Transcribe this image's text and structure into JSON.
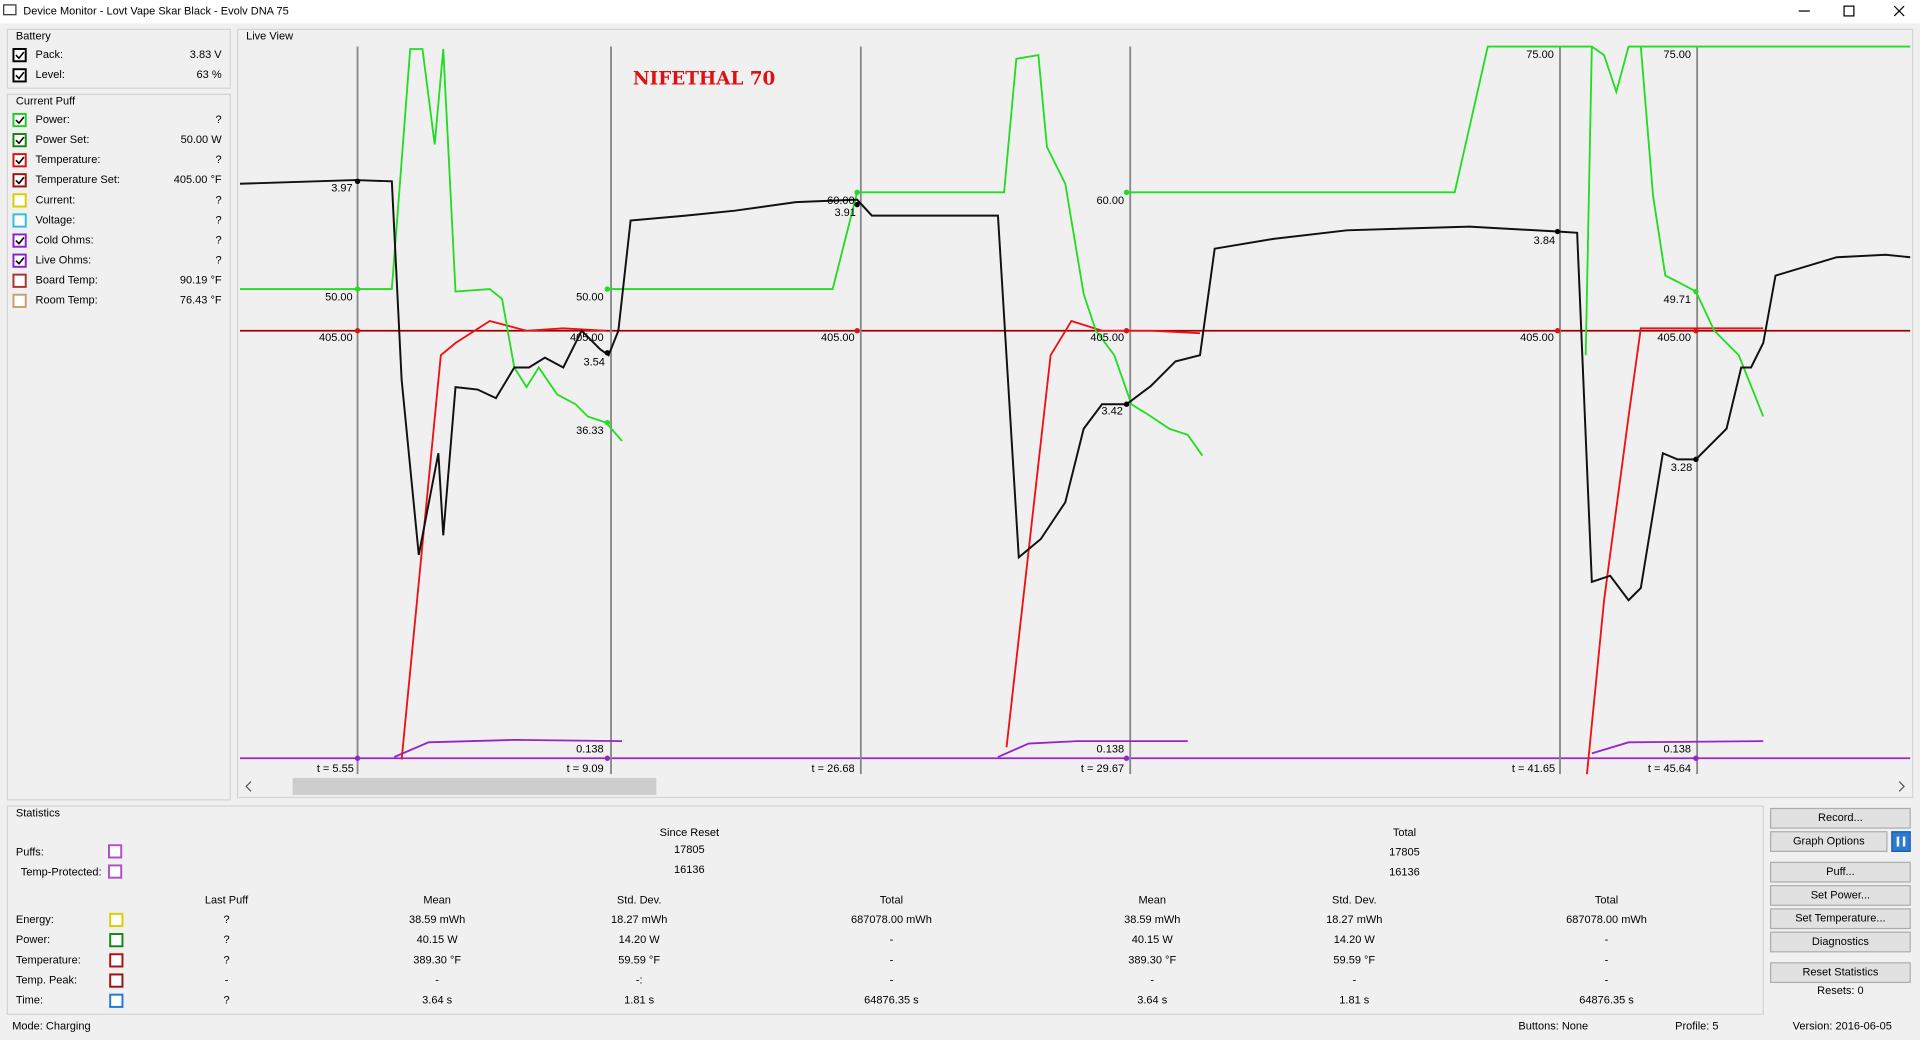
{
  "window": {
    "title": "Device Monitor - Lovt Vape Skar Black - Evolv DNA 75"
  },
  "battery": {
    "title": "Battery",
    "rows": [
      {
        "label": "Pack:",
        "value": "3.83 V"
      },
      {
        "label": "Level:",
        "value": "63 %"
      }
    ]
  },
  "current_puff": {
    "title": "Current Puff",
    "rows": [
      {
        "label": "Power:",
        "value": "?"
      },
      {
        "label": "Power Set:",
        "value": "50.00 W"
      },
      {
        "label": "Temperature:",
        "value": "?"
      },
      {
        "label": "Temperature Set:",
        "value": "405.00 °F"
      },
      {
        "label": "Current:",
        "value": "?"
      },
      {
        "label": "Voltage:",
        "value": "?"
      },
      {
        "label": "Cold Ohms:",
        "value": "?"
      },
      {
        "label": "Live Ohms:",
        "value": "?"
      },
      {
        "label": "Board Temp:",
        "value": "90.19 °F"
      },
      {
        "label": "Room Temp:",
        "value": "76.43 °F"
      }
    ]
  },
  "live_view": {
    "title": "Live View",
    "watermark": "NIFETHAL 70",
    "labels": [
      "3.97",
      "50.00",
      "405.00",
      "50.00",
      "405.00",
      "3.54",
      "36.33",
      "0.138",
      "60.00",
      "3.91",
      "405.00",
      "60.00",
      "405.00",
      "3.42",
      "0.138",
      "75.00",
      "3.84",
      "405.00",
      "75.00",
      "49.71",
      "405.00",
      "3.28",
      "0.138",
      "t = 5.55",
      "t = 9.09",
      "t = 26.68",
      "t = 29.67",
      "t = 41.65",
      "t = 45.64"
    ]
  },
  "statistics": {
    "title": "Statistics",
    "group_headers": [
      "Since Reset",
      "Total"
    ],
    "count_rows": [
      {
        "label": "Puffs:",
        "values": [
          "17805",
          "17805"
        ]
      },
      {
        "label": "Temp-Protected:",
        "values": [
          "16136",
          "16136"
        ]
      }
    ],
    "columns": [
      "Last Puff",
      "Mean",
      "Std. Dev.",
      "Total",
      "Mean",
      "Std. Dev.",
      "Total"
    ],
    "rows": [
      {
        "label": "Energy:",
        "values": [
          "?",
          "38.59 mWh",
          "18.27 mWh",
          "687078.00 mWh",
          "38.59 mWh",
          "18.27 mWh",
          "687078.00 mWh"
        ]
      },
      {
        "label": "Power:",
        "values": [
          "?",
          "40.15 W",
          "14.20 W",
          "-",
          "40.15 W",
          "14.20 W",
          "-"
        ]
      },
      {
        "label": "Temperature:",
        "values": [
          "?",
          "389.30 °F",
          "59.59 °F",
          "-",
          "389.30 °F",
          "59.59 °F",
          "-"
        ]
      },
      {
        "label": "Temp. Peak:",
        "values": [
          "-",
          "-",
          "-:",
          "-",
          "-",
          "-",
          "-"
        ]
      },
      {
        "label": "Time:",
        "values": [
          "?",
          "3.64 s",
          "1.81 s",
          "64876.35 s",
          "3.64 s",
          "1.81 s",
          "64876.35 s"
        ]
      }
    ]
  },
  "buttons": [
    "Record...",
    "Graph Options",
    "Puff...",
    "Set Power...",
    "Set Temperature...",
    "Diagnostics",
    "Reset Statistics"
  ],
  "resets": "Resets: 0",
  "status": {
    "mode": "Mode: Charging",
    "buttons": "Buttons: None",
    "profile": "Profile: 5",
    "version": "Version: 2016-06-05"
  }
}
